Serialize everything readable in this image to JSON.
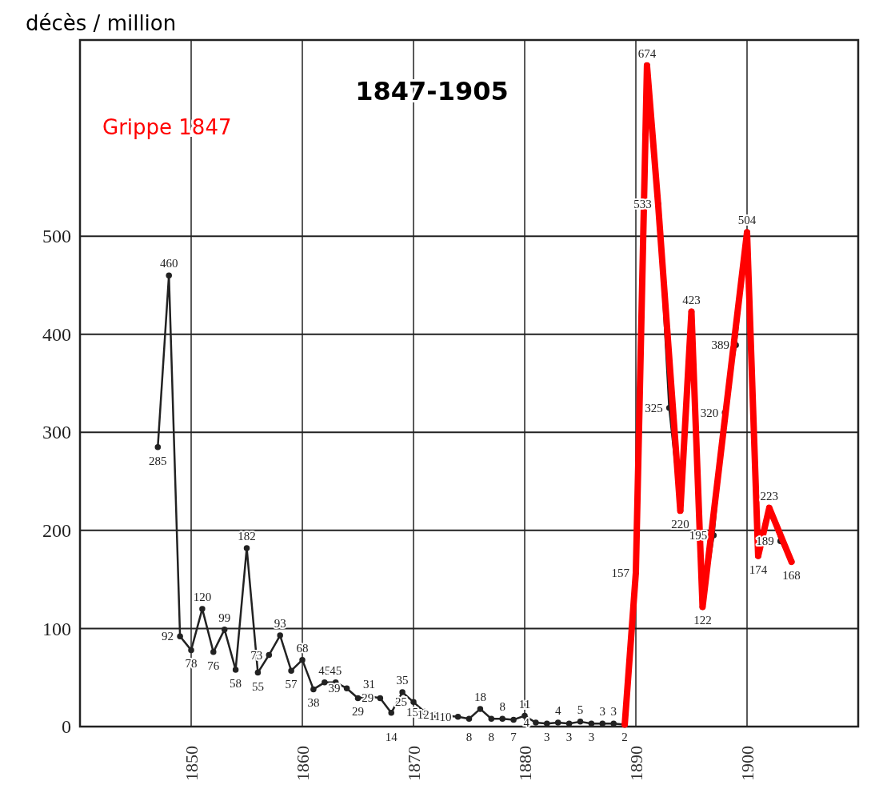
{
  "chart_data": {
    "type": "line",
    "title": "1847-1905",
    "ylabel": "décès / million",
    "annotations": [
      "Grippe 1847"
    ],
    "xlim": [
      1840,
      1910
    ],
    "ylim": [
      0,
      700
    ],
    "xticks": [
      1850,
      1860,
      1870,
      1880,
      1890,
      1900
    ],
    "yticks": [
      0,
      100,
      200,
      300,
      400,
      500
    ],
    "grid": true,
    "marker": "circle",
    "line_style": "solid",
    "series": [
      {
        "color": "#222222",
        "x": [
          1847,
          1848,
          1849,
          1850,
          1851,
          1852,
          1853,
          1854,
          1855,
          1856,
          1857,
          1858,
          1859,
          1860,
          1861,
          1862,
          1863,
          1864,
          1865,
          1866,
          1867,
          1868,
          1869,
          1870,
          1871,
          1872,
          1873,
          1874,
          1875,
          1876,
          1877,
          1878,
          1879,
          1880,
          1881,
          1882,
          1883,
          1884,
          1885,
          1886,
          1887,
          1888,
          1889,
          1890,
          1891,
          1892,
          1893,
          1894,
          1895,
          1896,
          1897,
          1898,
          1899,
          1900,
          1901,
          1902,
          1903,
          1904
        ],
        "values": [
          285,
          460,
          92,
          78,
          120,
          76,
          99,
          58,
          182,
          55,
          73,
          93,
          57,
          68,
          38,
          45,
          45,
          39,
          29,
          31,
          29,
          14,
          35,
          25,
          15,
          12,
          11,
          10,
          8,
          18,
          8,
          8,
          7,
          11,
          4,
          3,
          4,
          3,
          5,
          3,
          3,
          3,
          2,
          157,
          674,
          533,
          325,
          220,
          423,
          122,
          195,
          320,
          389,
          504,
          174,
          223,
          189,
          168
        ],
        "value_labels": [
          "285",
          "460",
          "92",
          "78",
          "120",
          "76",
          "99",
          "58",
          "182",
          "55",
          "73",
          "93",
          "57",
          "68",
          "38",
          "45",
          "45",
          "39",
          "29",
          "31",
          "29",
          "14",
          "35",
          "25",
          "15",
          "12",
          "11",
          "10",
          "8",
          "18",
          "8",
          "8",
          "7",
          "11",
          "4",
          "3",
          "4",
          "3",
          "5",
          "3",
          "3",
          "3",
          "2",
          "157",
          "674",
          "533",
          "325",
          "220",
          "423",
          "122",
          "195",
          "320",
          "389",
          "504",
          "174",
          "223",
          "189",
          "168"
        ]
      },
      {
        "color": "#ff0000",
        "marker": "none",
        "x": [
          1889,
          1890,
          1891,
          1892,
          1894,
          1895,
          1896,
          1900,
          1901,
          1902,
          1904
        ],
        "values": [
          2,
          157,
          674,
          533,
          220,
          423,
          122,
          504,
          174,
          223,
          168
        ]
      }
    ]
  }
}
